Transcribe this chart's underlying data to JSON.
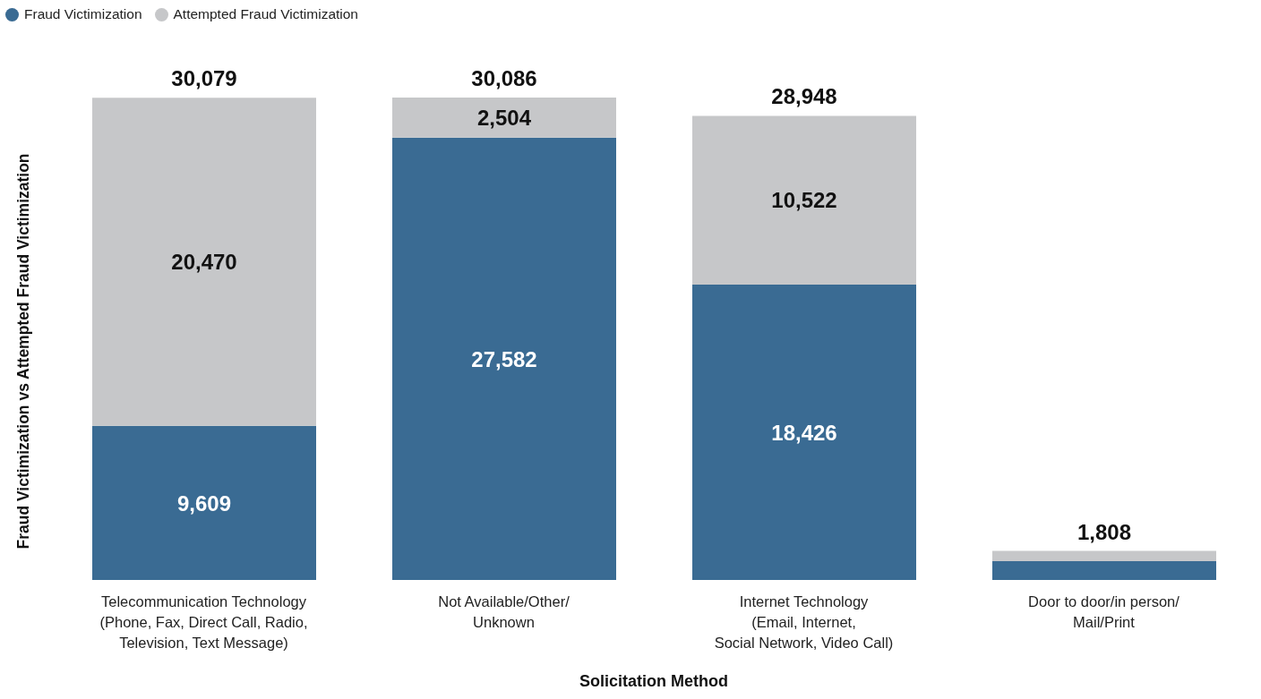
{
  "chart_data": {
    "type": "bar",
    "stacked": true,
    "xlabel": "Solicitation Method",
    "ylabel": "Fraud Victimization vs Attempted Fraud Victimization",
    "categories": [
      "Telecommunication Technology\n(Phone, Fax, Direct Call, Radio,\nTelevision, Text Message)",
      "Not Available/Other/\nUnknown",
      "Internet Technology\n(Email, Internet,\nSocial Network, Video Call)",
      "Door to door/in person/\nMail/Print"
    ],
    "series": [
      {
        "name": "Fraud Victimization",
        "color": "#3a6b93",
        "values": [
          9609,
          27582,
          18426,
          1170
        ],
        "value_labels": [
          "9,609",
          "27,582",
          "18,426",
          null
        ]
      },
      {
        "name": "Attempted Fraud Victimization",
        "color": "#c6c7c9",
        "values": [
          20470,
          2504,
          10522,
          638
        ],
        "value_labels": [
          "20,470",
          "2,504",
          "10,522",
          null
        ]
      }
    ],
    "totals": [
      "30,079",
      "30,086",
      "28,948",
      "1,808"
    ],
    "legend": "top left"
  }
}
